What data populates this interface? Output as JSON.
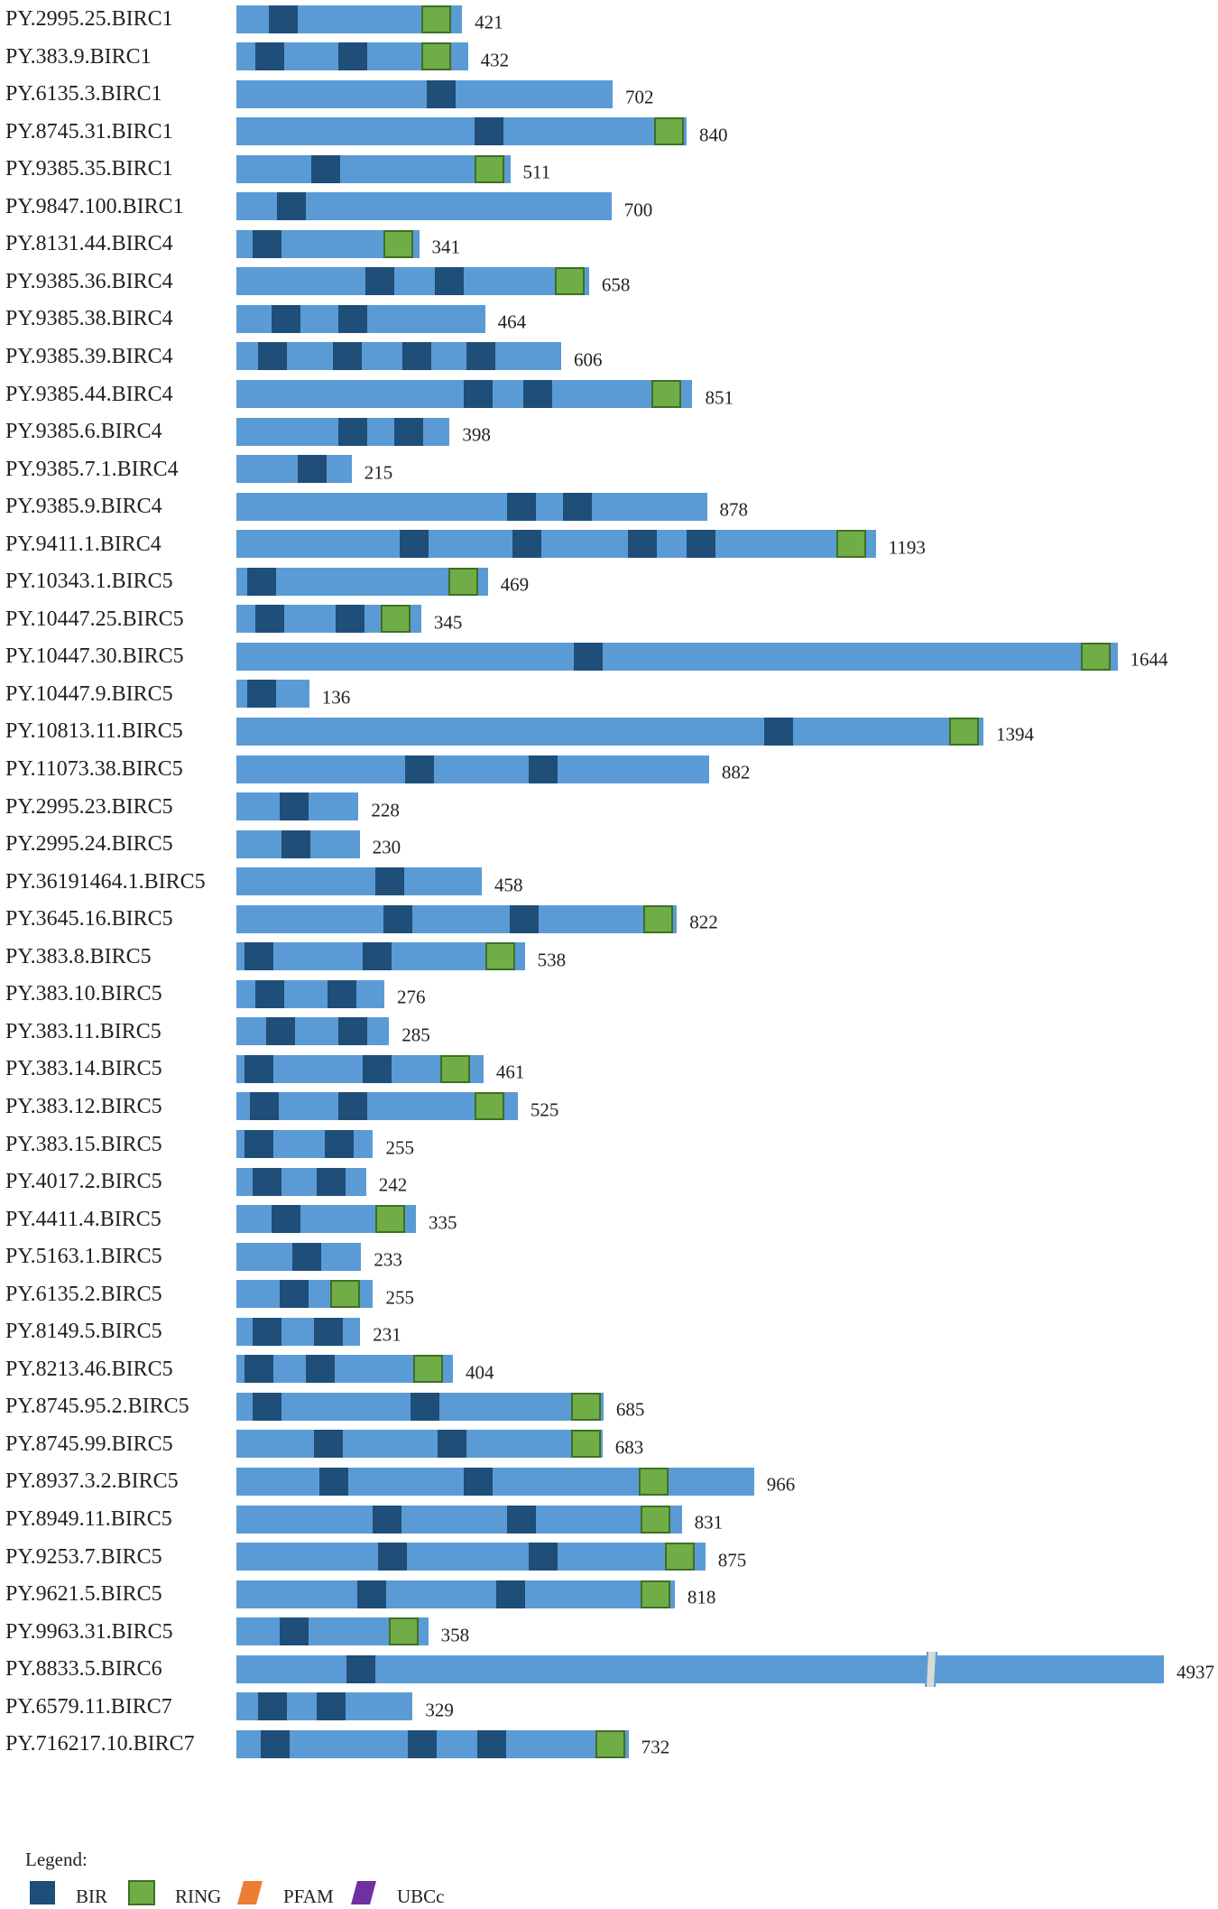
{
  "colors": {
    "bar": "#5b9bd5",
    "bir": "#1f4e79",
    "ring": "#70ad47",
    "pfam": "#ed7d31",
    "ubcc": "#7030a0"
  },
  "proteins": [
    {
      "label": "PY.2995.25.BIRC1",
      "length": "421",
      "aa": 421,
      "bir": [
        60
      ],
      "ring": [
        345
      ]
    },
    {
      "label": "PY.383.9.BIRC1",
      "length": "432",
      "aa": 432,
      "bir": [
        35,
        190
      ],
      "ring": [
        345
      ]
    },
    {
      "label": "PY.6135.3.BIRC1",
      "length": "702",
      "aa": 702,
      "bir": [
        355
      ],
      "ring": []
    },
    {
      "label": "PY.8745.31.BIRC1",
      "length": "840",
      "aa": 840,
      "bir": [
        445
      ],
      "ring": [
        780
      ]
    },
    {
      "label": "PY.9385.35.BIRC1",
      "length": "511",
      "aa": 511,
      "bir": [
        140
      ],
      "ring": [
        445
      ]
    },
    {
      "label": "PY.9847.100.BIRC1",
      "length": "700",
      "aa": 700,
      "bir": [
        75
      ],
      "ring": []
    },
    {
      "label": "PY.8131.44.BIRC4",
      "length": "341",
      "aa": 341,
      "bir": [
        30
      ],
      "ring": [
        275
      ]
    },
    {
      "label": "PY.9385.36.BIRC4",
      "length": "658",
      "aa": 658,
      "bir": [
        240,
        370
      ],
      "ring": [
        595
      ]
    },
    {
      "label": "PY.9385.38.BIRC4",
      "length": "464",
      "aa": 464,
      "bir": [
        65,
        190
      ],
      "ring": []
    },
    {
      "label": "PY.9385.39.BIRC4",
      "length": "606",
      "aa": 606,
      "bir": [
        40,
        180,
        310,
        430
      ],
      "ring": []
    },
    {
      "label": "PY.9385.44.BIRC4",
      "length": "851",
      "aa": 851,
      "bir": [
        425,
        535
      ],
      "ring": [
        775
      ]
    },
    {
      "label": "PY.9385.6.BIRC4",
      "length": "398",
      "aa": 398,
      "bir": [
        190,
        295
      ],
      "ring": []
    },
    {
      "label": "PY.9385.7.1.BIRC4",
      "length": "215",
      "aa": 215,
      "bir": [
        115
      ],
      "ring": []
    },
    {
      "label": "PY.9385.9.BIRC4",
      "length": "878",
      "aa": 878,
      "bir": [
        505,
        610
      ],
      "ring": []
    },
    {
      "label": "PY.9411.1.BIRC4",
      "length": "1193",
      "aa": 1193,
      "bir": [
        305,
        515,
        730,
        840
      ],
      "ring": [
        1120
      ]
    },
    {
      "label": "PY.10343.1.BIRC5",
      "length": "469",
      "aa": 469,
      "bir": [
        20
      ],
      "ring": [
        395
      ]
    },
    {
      "label": "PY.10447.25.BIRC5",
      "length": "345",
      "aa": 345,
      "bir": [
        35,
        185
      ],
      "ring": [
        270
      ]
    },
    {
      "label": "PY.10447.30.BIRC5",
      "length": "1644",
      "aa": 1644,
      "bir": [
        630
      ],
      "ring": [
        1575
      ]
    },
    {
      "label": "PY.10447.9.BIRC5",
      "length": "136",
      "aa": 136,
      "bir": [
        20
      ],
      "ring": []
    },
    {
      "label": "PY.10813.11.BIRC5",
      "length": "1394",
      "aa": 1394,
      "bir": [
        985
      ],
      "ring": [
        1330
      ]
    },
    {
      "label": "PY.11073.38.BIRC5",
      "length": "882",
      "aa": 882,
      "bir": [
        315,
        545
      ],
      "ring": []
    },
    {
      "label": "PY.2995.23.BIRC5",
      "length": "228",
      "aa": 228,
      "bir": [
        80
      ],
      "ring": []
    },
    {
      "label": "PY.2995.24.BIRC5",
      "length": "230",
      "aa": 230,
      "bir": [
        85
      ],
      "ring": []
    },
    {
      "label": "PY.36191464.1.BIRC5",
      "length": "458",
      "aa": 458,
      "bir": [
        260
      ],
      "ring": []
    },
    {
      "label": "PY.3645.16.BIRC5",
      "length": "822",
      "aa": 822,
      "bir": [
        275,
        510
      ],
      "ring": [
        760
      ]
    },
    {
      "label": "PY.383.8.BIRC5",
      "length": "538",
      "aa": 538,
      "bir": [
        15,
        235
      ],
      "ring": [
        465
      ]
    },
    {
      "label": "PY.383.10.BIRC5",
      "length": "276",
      "aa": 276,
      "bir": [
        35,
        170
      ],
      "ring": []
    },
    {
      "label": "PY.383.11.BIRC5",
      "length": "285",
      "aa": 285,
      "bir": [
        55,
        190
      ],
      "ring": []
    },
    {
      "label": "PY.383.14.BIRC5",
      "length": "461",
      "aa": 461,
      "bir": [
        15,
        235
      ],
      "ring": [
        380
      ]
    },
    {
      "label": "PY.383.12.BIRC5",
      "length": "525",
      "aa": 525,
      "bir": [
        25,
        190
      ],
      "ring": [
        445
      ]
    },
    {
      "label": "PY.383.15.BIRC5",
      "length": "255",
      "aa": 255,
      "bir": [
        15,
        165
      ],
      "ring": []
    },
    {
      "label": "PY.4017.2.BIRC5",
      "length": "242",
      "aa": 242,
      "bir": [
        30,
        150
      ],
      "ring": []
    },
    {
      "label": "PY.4411.4.BIRC5",
      "length": "335",
      "aa": 335,
      "bir": [
        65
      ],
      "ring": [
        260
      ]
    },
    {
      "label": "PY.5163.1.BIRC5",
      "length": "233",
      "aa": 233,
      "bir": [
        105
      ],
      "ring": []
    },
    {
      "label": "PY.6135.2.BIRC5",
      "length": "255",
      "aa": 255,
      "bir": [
        80
      ],
      "ring": [
        175
      ]
    },
    {
      "label": "PY.8149.5.BIRC5",
      "length": "231",
      "aa": 231,
      "bir": [
        30,
        145
      ],
      "ring": []
    },
    {
      "label": "PY.8213.46.BIRC5",
      "length": "404",
      "aa": 404,
      "bir": [
        15,
        130
      ],
      "ring": [
        330
      ]
    },
    {
      "label": "PY.8745.95.2.BIRC5",
      "length": "685",
      "aa": 685,
      "bir": [
        30,
        325
      ],
      "ring": [
        625
      ]
    },
    {
      "label": "PY.8745.99.BIRC5",
      "length": "683",
      "aa": 683,
      "bir": [
        145,
        375
      ],
      "ring": [
        625
      ]
    },
    {
      "label": "PY.8937.3.2.BIRC5",
      "length": "966",
      "aa": 966,
      "bir": [
        155,
        425
      ],
      "ring": [
        750
      ]
    },
    {
      "label": "PY.8949.11.BIRC5",
      "length": "831",
      "aa": 831,
      "bir": [
        255,
        505
      ],
      "ring": [
        755
      ]
    },
    {
      "label": "PY.9253.7.BIRC5",
      "length": "875",
      "aa": 875,
      "bir": [
        265,
        545
      ],
      "ring": [
        800
      ]
    },
    {
      "label": "PY.9621.5.BIRC5",
      "length": "818",
      "aa": 818,
      "bir": [
        225,
        485
      ],
      "ring": [
        755
      ]
    },
    {
      "label": "PY.9963.31.BIRC5",
      "length": "358",
      "aa": 358,
      "bir": [
        80
      ],
      "ring": [
        285
      ]
    },
    {
      "label": "PY.8833.5.BIRC6",
      "length": "4937",
      "aa": 4937,
      "bir": [
        595
      ],
      "ring": [],
      "break_at": 3700
    },
    {
      "label": "PY.6579.11.BIRC7",
      "length": "329",
      "aa": 329,
      "bir": [
        40,
        150
      ],
      "ring": []
    },
    {
      "label": "PY.716217.10.BIRC7",
      "length": "732",
      "aa": 732,
      "bir": [
        45,
        320,
        450
      ],
      "ring": [
        670
      ]
    }
  ],
  "legend": {
    "title": "Legend:",
    "items": [
      {
        "key": "bir",
        "label": "BIR"
      },
      {
        "key": "ring",
        "label": "RING"
      },
      {
        "key": "pfam",
        "label": "PFAM"
      },
      {
        "key": "ubcc",
        "label": "UBCc"
      }
    ]
  }
}
